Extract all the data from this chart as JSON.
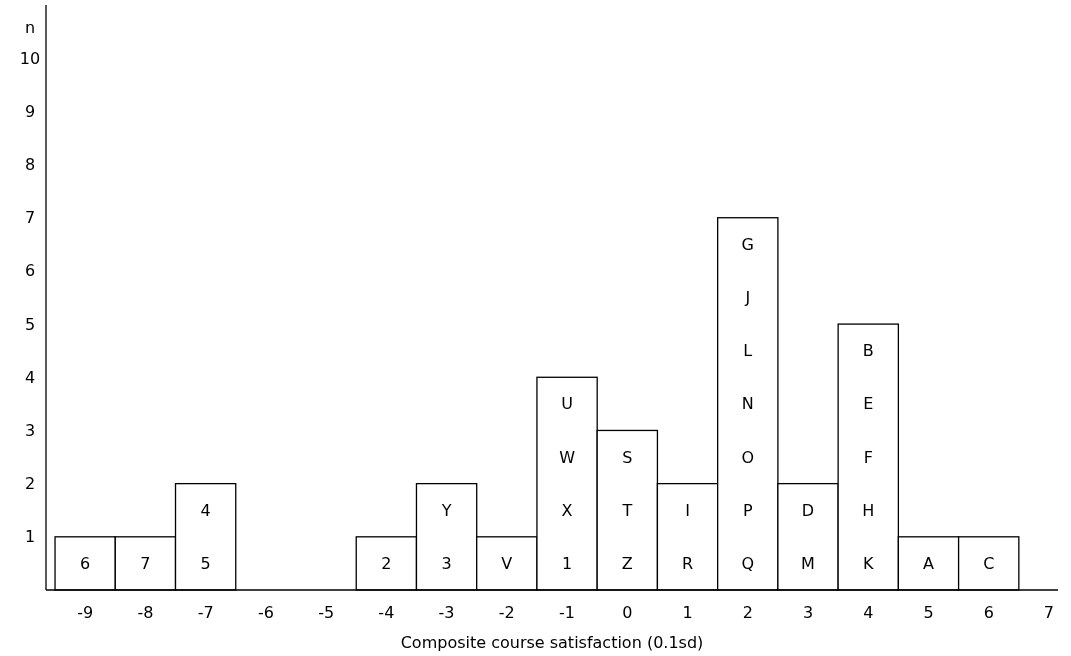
{
  "chart_data": {
    "type": "histogram",
    "xlabel": "Composite course satisfaction (0.1sd)",
    "ylabel": "n",
    "bins": [
      -9.5,
      -8.5,
      -7.5,
      -6.5,
      -5.5,
      -4.5,
      -3.5,
      -2.5,
      -1.5,
      -0.5,
      0.5,
      1.5,
      2.5,
      3.5,
      4.5,
      5.5,
      6.5
    ],
    "values": [
      1,
      1,
      2,
      0,
      0,
      1,
      2,
      1,
      4,
      3,
      2,
      7,
      2,
      5,
      1,
      1
    ],
    "color": "#ffffff",
    "xlim": [
      -9.65,
      7.15
    ],
    "xticks": [
      -9,
      -8,
      -7,
      -6,
      -5,
      -4,
      -3,
      -2,
      -1,
      0,
      1,
      2,
      3,
      4,
      5,
      6,
      7
    ],
    "ylim": [
      0,
      11
    ],
    "yticks": [
      1,
      2,
      3,
      4,
      5,
      6,
      7,
      8,
      9,
      10
    ],
    "grid": false,
    "annotations": [
      "6",
      "7",
      "5",
      "4",
      "2",
      "3",
      "Y",
      "V",
      "1",
      "X",
      "W",
      "U",
      "Z",
      "T",
      "S",
      "R",
      "I",
      "Q",
      "P",
      "O",
      "N",
      "L",
      "J",
      "G",
      "M",
      "D",
      "K",
      "H",
      "F",
      "E",
      "B",
      "A",
      "C"
    ]
  }
}
